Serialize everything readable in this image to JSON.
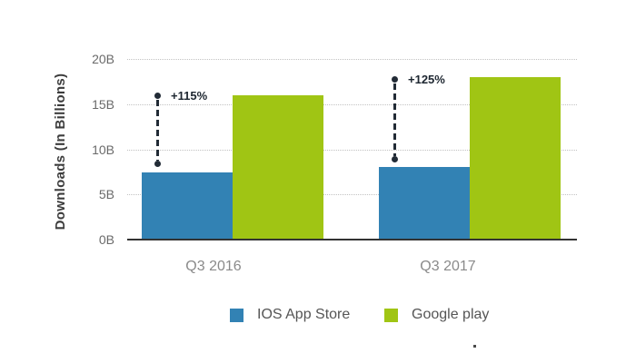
{
  "chart_data": {
    "type": "bar",
    "ylabel": "Downloads (In Billions)",
    "xlabel": "",
    "categories": [
      "Q3 2016",
      "Q3 2017"
    ],
    "series": [
      {
        "name": "IOS App Store",
        "color": "#3282b4",
        "values": [
          7.45,
          8
        ]
      },
      {
        "name": "Google play",
        "color": "#a0c514",
        "values": [
          16,
          18
        ]
      }
    ],
    "annotations": [
      {
        "label": "+115%",
        "category": "Q3 2016",
        "from_value": 8.4,
        "to_value": 15.9
      },
      {
        "label": "+125%",
        "category": "Q3 2017",
        "from_value": 8.9,
        "to_value": 17.7
      }
    ],
    "y_ticks": [
      "0B",
      "5B",
      "10B",
      "15B",
      "20B"
    ],
    "y_tick_values": [
      0,
      5,
      10,
      15,
      20
    ],
    "ylim": [
      0,
      20
    ],
    "grid": "horizontal-dotted",
    "legend_position": "bottom",
    "colors": {
      "ios_bar": "#3282b4",
      "google_play_bar": "#a0c514",
      "annotation": "#222b36",
      "axis_line": "#333333",
      "gridline": "#c2c2c2",
      "tick_label": "#6a6a6a",
      "category_label": "#8a8a8a",
      "legend_text": "#555555",
      "y_axis_title": "#3d3d3d"
    }
  }
}
